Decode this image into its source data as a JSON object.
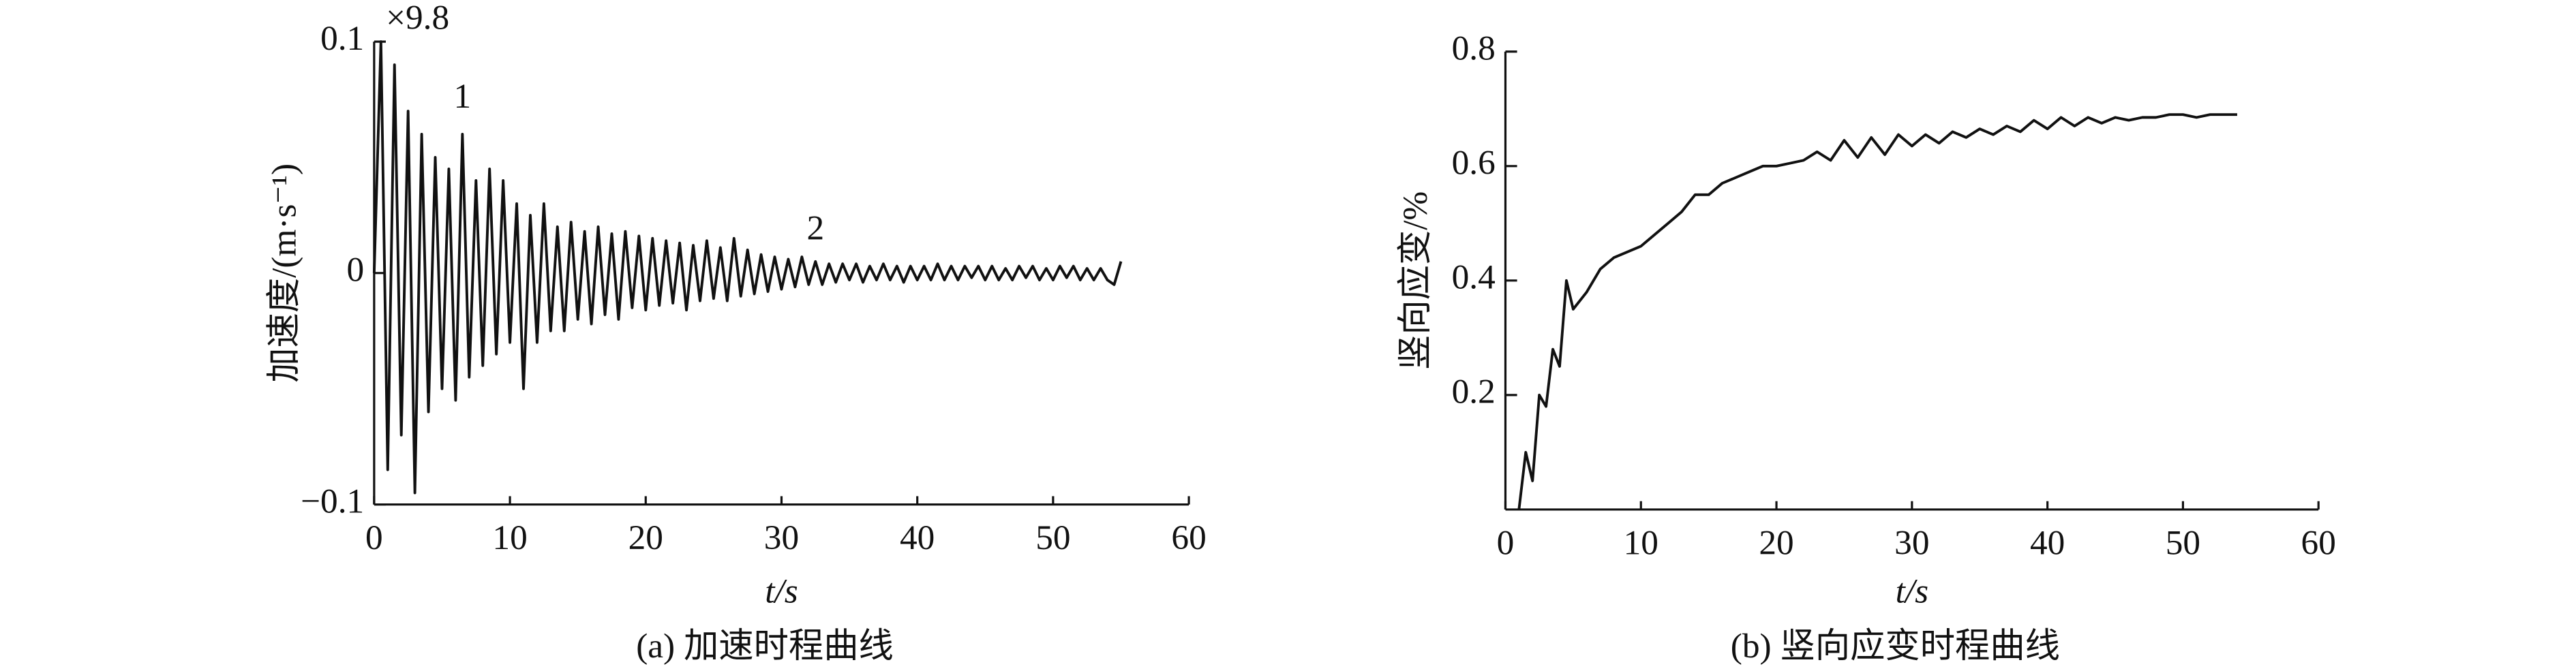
{
  "chart_data": [
    {
      "type": "line",
      "caption": "(a) 加速时程曲线",
      "xlabel": "t/s",
      "ylabel": "加速度/(m·s⁻¹)",
      "color": "#111111",
      "annotations": [
        {
          "text": "×9.8",
          "x": 3.2,
          "y": 0.109
        },
        {
          "text": "1",
          "x": 6.5,
          "y": 0.075
        },
        {
          "text": "2",
          "x": 32.5,
          "y": 0.018
        }
      ],
      "xlim": [
        0,
        60
      ],
      "xticks": [
        0,
        10,
        20,
        30,
        40,
        50,
        60
      ],
      "ylim": [
        -0.1,
        0.1
      ],
      "yticks": [
        {
          "value": 0.1,
          "label": "0.1"
        },
        0,
        {
          "value": -0.1,
          "label": "−0.1"
        }
      ],
      "x": [
        0,
        0.5,
        1,
        1.5,
        2,
        2.5,
        3,
        3.5,
        4,
        4.5,
        5,
        5.5,
        6,
        6.5,
        7,
        7.5,
        8,
        8.5,
        9,
        9.5,
        10,
        10.5,
        11,
        11.5,
        12,
        12.5,
        13,
        13.5,
        14,
        14.5,
        15,
        15.5,
        16,
        16.5,
        17,
        17.5,
        18,
        18.5,
        19,
        19.5,
        20,
        20.5,
        21,
        21.5,
        22,
        22.5,
        23,
        23.5,
        24,
        24.5,
        25,
        25.5,
        26,
        26.5,
        27,
        27.5,
        28,
        28.5,
        29,
        29.5,
        30,
        30.5,
        31,
        31.5,
        32,
        32.5,
        33,
        33.5,
        34,
        34.5,
        35,
        35.5,
        36,
        36.5,
        37,
        37.5,
        38,
        38.5,
        39,
        39.5,
        40,
        40.5,
        41,
        41.5,
        42,
        42.5,
        43,
        43.5,
        44,
        44.5,
        45,
        45.5,
        46,
        46.5,
        47,
        47.5,
        48,
        48.5,
        49,
        49.5,
        50,
        50.5,
        51,
        51.5,
        52,
        52.5,
        53,
        53.5,
        54,
        54.5,
        55
      ],
      "values": [
        0,
        0.1,
        -0.085,
        0.09,
        -0.07,
        0.07,
        -0.095,
        0.06,
        -0.06,
        0.05,
        -0.05,
        0.045,
        -0.055,
        0.06,
        -0.045,
        0.04,
        -0.04,
        0.045,
        -0.035,
        0.04,
        -0.03,
        0.03,
        -0.05,
        0.025,
        -0.03,
        0.03,
        -0.025,
        0.02,
        -0.025,
        0.022,
        -0.02,
        0.018,
        -0.022,
        0.02,
        -0.018,
        0.017,
        -0.02,
        0.018,
        -0.015,
        0.016,
        -0.016,
        0.015,
        -0.014,
        0.014,
        -0.013,
        0.013,
        -0.016,
        0.012,
        -0.012,
        0.014,
        -0.011,
        0.011,
        -0.012,
        0.015,
        -0.01,
        0.01,
        -0.009,
        0.008,
        -0.008,
        0.007,
        -0.007,
        0.006,
        -0.006,
        0.007,
        -0.005,
        0.005,
        -0.005,
        0.004,
        -0.004,
        0.004,
        -0.003,
        0.004,
        -0.004,
        0.003,
        -0.003,
        0.004,
        -0.003,
        0.003,
        -0.004,
        0.003,
        -0.003,
        0.003,
        -0.003,
        0.004,
        -0.003,
        0.003,
        -0.003,
        0.003,
        -0.002,
        0.003,
        -0.003,
        0.003,
        -0.003,
        0.002,
        -0.003,
        0.003,
        -0.002,
        0.003,
        -0.003,
        0.002,
        -0.003,
        0.003,
        -0.002,
        0.003,
        -0.003,
        0.002,
        -0.003,
        0.002,
        -0.003,
        -0.005,
        0.005
      ]
    },
    {
      "type": "line",
      "caption": "(b) 竖向应变时程曲线",
      "xlabel": "t/s",
      "ylabel": "竖向应变/%",
      "color": "#111111",
      "xlim": [
        0,
        60
      ],
      "xticks": [
        0,
        10,
        20,
        30,
        40,
        50,
        60
      ],
      "ylim": [
        0,
        0.8
      ],
      "yticks": [
        0.2,
        0.4,
        0.6,
        0.8
      ],
      "x": [
        1,
        1.5,
        2,
        2.5,
        3,
        3.5,
        4,
        4.5,
        5,
        6,
        7,
        8,
        9,
        10,
        11,
        12,
        13,
        14,
        15,
        16,
        17,
        18,
        19,
        20,
        21,
        22,
        23,
        24,
        25,
        26,
        27,
        28,
        29,
        30,
        31,
        32,
        33,
        34,
        35,
        36,
        37,
        38,
        39,
        40,
        41,
        42,
        43,
        44,
        45,
        46,
        47,
        48,
        49,
        50,
        51,
        52,
        53,
        54
      ],
      "values": [
        0,
        0.1,
        0.05,
        0.2,
        0.18,
        0.28,
        0.25,
        0.4,
        0.35,
        0.38,
        0.42,
        0.44,
        0.45,
        0.46,
        0.48,
        0.5,
        0.52,
        0.55,
        0.55,
        0.57,
        0.58,
        0.59,
        0.6,
        0.6,
        0.605,
        0.61,
        0.625,
        0.61,
        0.645,
        0.615,
        0.65,
        0.62,
        0.655,
        0.635,
        0.655,
        0.64,
        0.66,
        0.65,
        0.665,
        0.655,
        0.67,
        0.66,
        0.68,
        0.665,
        0.685,
        0.67,
        0.685,
        0.675,
        0.685,
        0.68,
        0.685,
        0.685,
        0.69,
        0.69,
        0.685,
        0.69,
        0.69,
        0.69
      ]
    }
  ]
}
